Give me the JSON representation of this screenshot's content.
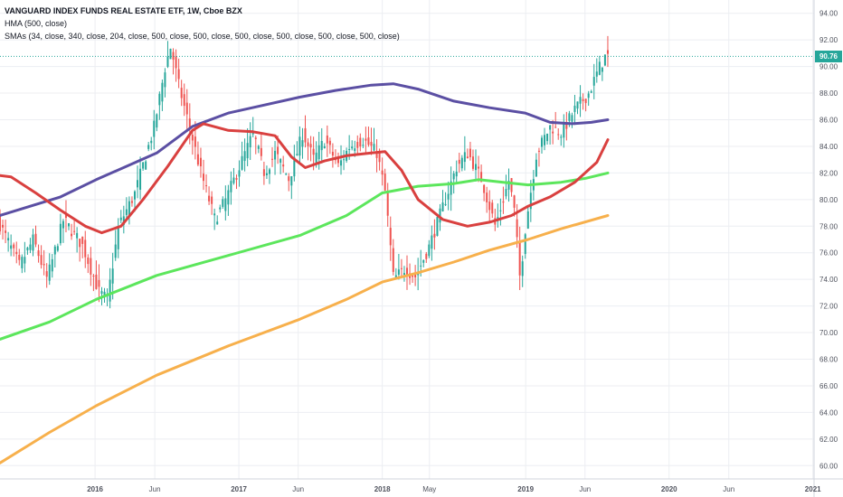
{
  "legend": {
    "title": "VANGUARD INDEX FUNDS REAL ESTATE ETF, 1W, Cboe BZX",
    "line2": "HMA (500, close)",
    "line3": "SMAs (34, close, 340, close, 204, close, 500, close, 500, close, 500, close, 500, close, 500, close, 500, close)"
  },
  "last_price_label": "90.76",
  "colors": {
    "bull": "#26a69a",
    "bear": "#ef5350",
    "hma": "#5b4fa3",
    "sma34": "#d9403f",
    "sma204": "#5ce65c",
    "sma340": "#f7b04c",
    "grid": "#eceef2",
    "axis_text": "#50535e",
    "price_line": "#26a69a"
  },
  "chart_data": {
    "type": "candlestick",
    "symbol": "VANGUARD INDEX FUNDS REAL ESTATE ETF",
    "interval": "1W",
    "exchange": "Cboe BZX",
    "last_price": 90.76,
    "ylim": [
      59,
      95
    ],
    "xlim": [
      "2015-05-04",
      "2021-01-04"
    ],
    "y_ticks": [
      "60.00",
      "62.00",
      "64.00",
      "66.00",
      "68.00",
      "70.00",
      "72.00",
      "74.00",
      "76.00",
      "78.00",
      "80.00",
      "82.00",
      "84.00",
      "86.00",
      "88.00",
      "90.00",
      "92.00",
      "94.00"
    ],
    "x_ticks": [
      {
        "date": "2016-01-01",
        "label": "2016",
        "major": true
      },
      {
        "date": "2016-06-01",
        "label": "Jun",
        "major": false
      },
      {
        "date": "2017-01-01",
        "label": "2017",
        "major": true
      },
      {
        "date": "2017-06-01",
        "label": "Jun",
        "major": false
      },
      {
        "date": "2018-01-01",
        "label": "2018",
        "major": true
      },
      {
        "date": "2018-05-01",
        "label": "May",
        "major": false
      },
      {
        "date": "2019-01-01",
        "label": "2019",
        "major": true
      },
      {
        "date": "2019-06-01",
        "label": "Jun",
        "major": false
      },
      {
        "date": "2020-01-01",
        "label": "2020",
        "major": true
      },
      {
        "date": "2020-06-01",
        "label": "Jun",
        "major": false
      },
      {
        "date": "2021-01-01",
        "label": "2021",
        "major": true
      }
    ],
    "price_path": [
      [
        "2015-05-04",
        78.5
      ],
      [
        "2015-06-29",
        75.0
      ],
      [
        "2015-08-03",
        77.0
      ],
      [
        "2015-09-07",
        74.0
      ],
      [
        "2015-10-19",
        78.5
      ],
      [
        "2015-12-07",
        76.5
      ],
      [
        "2016-01-18",
        73.0
      ],
      [
        "2016-02-08",
        72.5
      ],
      [
        "2016-03-07",
        78.0
      ],
      [
        "2016-04-18",
        80.5
      ],
      [
        "2016-06-06",
        85.5
      ],
      [
        "2016-07-04",
        90.0
      ],
      [
        "2016-07-18",
        91.5
      ],
      [
        "2016-08-08",
        88.5
      ],
      [
        "2016-09-12",
        84.5
      ],
      [
        "2016-10-03",
        82.0
      ],
      [
        "2016-11-07",
        78.5
      ],
      [
        "2016-12-05",
        80.0
      ],
      [
        "2017-01-02",
        82.0
      ],
      [
        "2017-02-13",
        85.0
      ],
      [
        "2017-03-13",
        82.0
      ],
      [
        "2017-04-10",
        83.5
      ],
      [
        "2017-05-15",
        81.5
      ],
      [
        "2017-06-19",
        85.0
      ],
      [
        "2017-07-17",
        83.0
      ],
      [
        "2017-08-14",
        84.5
      ],
      [
        "2017-09-18",
        82.5
      ],
      [
        "2017-10-16",
        84.0
      ],
      [
        "2017-11-20",
        84.5
      ],
      [
        "2017-12-25",
        83.5
      ],
      [
        "2018-01-15",
        80.5
      ],
      [
        "2018-02-05",
        74.0
      ],
      [
        "2018-03-05",
        74.8
      ],
      [
        "2018-04-02",
        74.2
      ],
      [
        "2018-05-07",
        76.5
      ],
      [
        "2018-06-11",
        79.5
      ],
      [
        "2018-07-16",
        82.5
      ],
      [
        "2018-08-13",
        83.5
      ],
      [
        "2018-09-17",
        81.5
      ],
      [
        "2018-10-22",
        78.0
      ],
      [
        "2018-11-26",
        81.5
      ],
      [
        "2018-12-10",
        79.0
      ],
      [
        "2018-12-24",
        74.0
      ],
      [
        "2019-01-07",
        78.0
      ],
      [
        "2019-02-04",
        83.5
      ],
      [
        "2019-03-11",
        85.5
      ],
      [
        "2019-04-08",
        85.0
      ],
      [
        "2019-05-13",
        86.8
      ],
      [
        "2019-06-17",
        88.0
      ],
      [
        "2019-07-15",
        90.0
      ],
      [
        "2019-07-29",
        90.76
      ]
    ],
    "series": [
      {
        "name": "HMA (500, close)",
        "color": "#5b4fa3",
        "points": [
          [
            "2015-05-04",
            78.8
          ],
          [
            "2015-10-05",
            80.2
          ],
          [
            "2016-01-04",
            81.5
          ],
          [
            "2016-06-06",
            83.5
          ],
          [
            "2016-09-05",
            85.5
          ],
          [
            "2016-12-05",
            86.5
          ],
          [
            "2017-03-06",
            87.1
          ],
          [
            "2017-06-05",
            87.7
          ],
          [
            "2017-09-04",
            88.2
          ],
          [
            "2017-12-04",
            88.6
          ],
          [
            "2018-01-29",
            88.7
          ],
          [
            "2018-04-02",
            88.3
          ],
          [
            "2018-07-02",
            87.4
          ],
          [
            "2018-10-01",
            86.9
          ],
          [
            "2018-12-31",
            86.5
          ],
          [
            "2019-03-04",
            85.8
          ],
          [
            "2019-04-29",
            85.7
          ],
          [
            "2019-06-17",
            85.8
          ],
          [
            "2019-07-29",
            86.0
          ]
        ]
      },
      {
        "name": "SMA 34",
        "color": "#d9403f",
        "points": [
          [
            "2015-05-04",
            81.8
          ],
          [
            "2015-06-01",
            81.7
          ],
          [
            "2015-08-03",
            80.5
          ],
          [
            "2015-10-05",
            79.2
          ],
          [
            "2015-12-07",
            78.0
          ],
          [
            "2016-01-18",
            77.5
          ],
          [
            "2016-03-07",
            78.0
          ],
          [
            "2016-05-02",
            80.0
          ],
          [
            "2016-07-04",
            82.5
          ],
          [
            "2016-09-05",
            85.2
          ],
          [
            "2016-10-03",
            85.7
          ],
          [
            "2016-12-05",
            85.2
          ],
          [
            "2017-02-06",
            85.1
          ],
          [
            "2017-04-03",
            84.8
          ],
          [
            "2017-05-15",
            83.2
          ],
          [
            "2017-06-19",
            82.4
          ],
          [
            "2017-08-07",
            82.9
          ],
          [
            "2017-10-02",
            83.3
          ],
          [
            "2017-12-04",
            83.5
          ],
          [
            "2018-01-08",
            83.6
          ],
          [
            "2018-02-19",
            82.2
          ],
          [
            "2018-04-02",
            80.0
          ],
          [
            "2018-06-04",
            78.5
          ],
          [
            "2018-08-06",
            78.0
          ],
          [
            "2018-10-01",
            78.3
          ],
          [
            "2018-11-26",
            78.8
          ],
          [
            "2019-01-07",
            79.5
          ],
          [
            "2019-03-04",
            80.2
          ],
          [
            "2019-05-06",
            81.3
          ],
          [
            "2019-07-01",
            82.8
          ],
          [
            "2019-07-29",
            84.5
          ]
        ]
      },
      {
        "name": "SMA 204",
        "color": "#5ce65c",
        "points": [
          [
            "2015-05-04",
            69.5
          ],
          [
            "2015-09-07",
            70.8
          ],
          [
            "2016-01-04",
            72.5
          ],
          [
            "2016-06-06",
            74.3
          ],
          [
            "2016-12-05",
            75.8
          ],
          [
            "2017-06-05",
            77.3
          ],
          [
            "2017-10-02",
            78.8
          ],
          [
            "2018-01-01",
            80.5
          ],
          [
            "2018-04-02",
            81.0
          ],
          [
            "2018-07-02",
            81.2
          ],
          [
            "2018-09-03",
            81.5
          ],
          [
            "2018-11-05",
            81.3
          ],
          [
            "2019-01-07",
            81.1
          ],
          [
            "2019-04-01",
            81.3
          ],
          [
            "2019-06-03",
            81.6
          ],
          [
            "2019-07-29",
            82.0
          ]
        ]
      },
      {
        "name": "SMA 340",
        "color": "#f7b04c",
        "points": [
          [
            "2015-05-04",
            60.2
          ],
          [
            "2015-09-07",
            62.5
          ],
          [
            "2016-01-04",
            64.5
          ],
          [
            "2016-06-06",
            66.8
          ],
          [
            "2016-12-05",
            69.0
          ],
          [
            "2017-06-05",
            71.0
          ],
          [
            "2017-10-02",
            72.5
          ],
          [
            "2018-01-01",
            73.8
          ],
          [
            "2018-04-02",
            74.5
          ],
          [
            "2018-07-02",
            75.3
          ],
          [
            "2018-10-01",
            76.2
          ],
          [
            "2019-01-07",
            77.0
          ],
          [
            "2019-04-01",
            77.8
          ],
          [
            "2019-07-29",
            78.8
          ]
        ]
      }
    ]
  }
}
